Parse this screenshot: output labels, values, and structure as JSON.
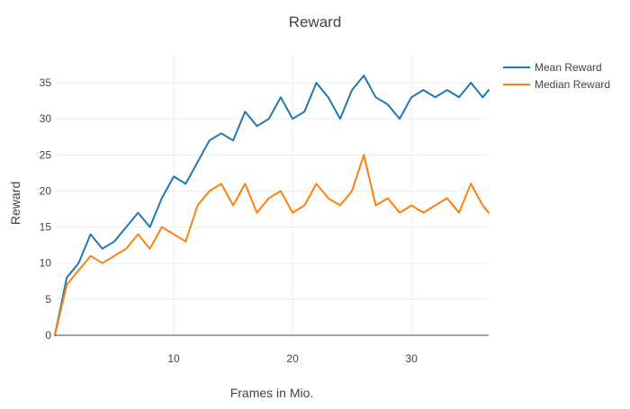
{
  "chart_data": {
    "type": "line",
    "title": "Reward",
    "xlabel": "Frames in Mio.",
    "ylabel": "Reward",
    "xlim": [
      0,
      36.5
    ],
    "ylim": [
      0,
      39
    ],
    "x_ticks": [
      10,
      20,
      30
    ],
    "y_ticks": [
      0,
      5,
      10,
      15,
      20,
      25,
      30,
      35
    ],
    "grid": true,
    "legend_position": "top-right",
    "series": [
      {
        "name": "Mean Reward",
        "color": "#1f77b4",
        "x": [
          0,
          1,
          2,
          3,
          4,
          5,
          6,
          7,
          8,
          9,
          10,
          11,
          12,
          13,
          14,
          15,
          16,
          17,
          18,
          19,
          20,
          21,
          22,
          23,
          24,
          25,
          26,
          27,
          28,
          29,
          30,
          31,
          32,
          33,
          34,
          35,
          36,
          36.5
        ],
        "values": [
          0,
          8,
          10,
          14,
          12,
          13,
          15,
          17,
          15,
          19,
          22,
          21,
          24,
          27,
          28,
          27,
          31,
          29,
          30,
          33,
          30,
          31,
          35,
          33,
          30,
          34,
          36,
          33,
          32,
          30,
          33,
          34,
          33,
          34,
          33,
          35,
          33,
          34
        ]
      },
      {
        "name": "Median Reward",
        "color": "#ff7f0e",
        "x": [
          0,
          1,
          2,
          3,
          4,
          5,
          6,
          7,
          8,
          9,
          10,
          11,
          12,
          13,
          14,
          15,
          16,
          17,
          18,
          19,
          20,
          21,
          22,
          23,
          24,
          25,
          26,
          27,
          28,
          29,
          30,
          31,
          32,
          33,
          34,
          35,
          36,
          36.5
        ],
        "values": [
          0,
          7,
          9,
          11,
          10,
          11,
          12,
          14,
          12,
          15,
          14,
          13,
          18,
          20,
          21,
          18,
          21,
          17,
          19,
          20,
          17,
          18,
          21,
          19,
          18,
          20,
          25,
          18,
          19,
          17,
          18,
          17,
          18,
          19,
          17,
          21,
          18,
          17
        ]
      }
    ]
  }
}
